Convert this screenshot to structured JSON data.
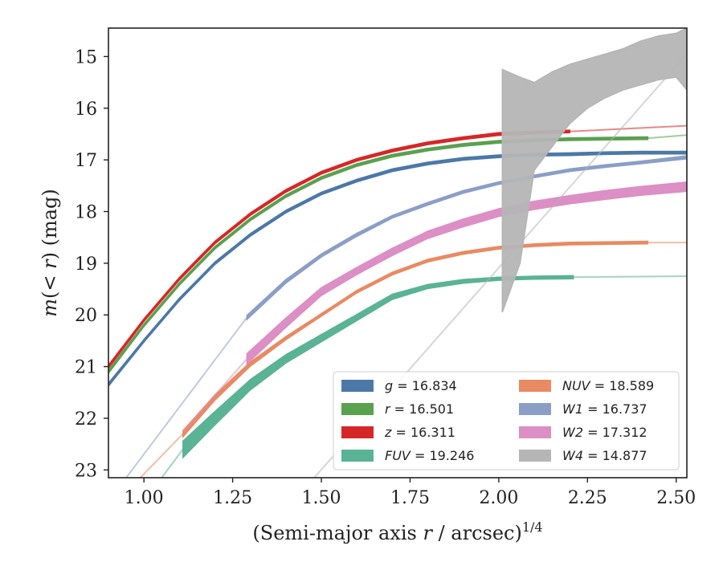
{
  "chart_data": {
    "type": "line",
    "xlabel": "(Semi-major axis r / arcsec)",
    "xlabel_sup": "1/4",
    "ylabel": "m(< r) (mag)",
    "xlim": [
      0.9,
      2.53
    ],
    "ylim": [
      23.15,
      14.45
    ],
    "y_inverted": true,
    "x_ticks": [
      "1.00",
      "1.25",
      "1.50",
      "1.75",
      "2.00",
      "2.25",
      "2.50"
    ],
    "x_tick_values": [
      1.0,
      1.25,
      1.5,
      1.75,
      2.0,
      2.25,
      2.5
    ],
    "y_ticks": [
      "15",
      "16",
      "17",
      "18",
      "19",
      "20",
      "21",
      "22",
      "23"
    ],
    "y_tick_values": [
      15,
      16,
      17,
      18,
      19,
      20,
      21,
      22,
      23
    ],
    "legend_position": "lower-right",
    "legend_columns": 2,
    "series": [
      {
        "name": "g = 16.834",
        "legend_var": "g",
        "legend_value": "16.834",
        "color": "#4c78a8",
        "thin_x": [
          0.9,
          2.53
        ],
        "band_x": [
          0.9,
          1.0,
          1.1,
          1.2,
          1.3,
          1.4,
          1.5,
          1.6,
          1.7,
          1.8,
          1.9,
          2.0,
          2.1,
          2.2,
          2.3,
          2.4,
          2.53
        ],
        "band_y": [
          21.35,
          20.5,
          19.7,
          19.0,
          18.45,
          18.0,
          17.65,
          17.4,
          17.2,
          17.07,
          16.98,
          16.93,
          16.9,
          16.89,
          16.87,
          16.86,
          16.86
        ],
        "band_width": [
          0.06,
          0.05,
          0.05,
          0.05,
          0.05,
          0.05,
          0.05,
          0.05,
          0.05,
          0.05,
          0.05,
          0.05,
          0.05,
          0.05,
          0.05,
          0.05,
          0.05
        ]
      },
      {
        "name": "r = 16.501",
        "legend_var": "r",
        "legend_value": "16.501",
        "color": "#59a14f",
        "thin_x": [
          0.9,
          2.53
        ],
        "thin_end": [
          2.53,
          16.52
        ],
        "band_x": [
          0.9,
          1.0,
          1.1,
          1.2,
          1.3,
          1.4,
          1.5,
          1.6,
          1.7,
          1.8,
          1.9,
          2.0,
          2.1,
          2.2,
          2.3,
          2.42
        ],
        "band_y": [
          21.1,
          20.2,
          19.4,
          18.7,
          18.15,
          17.7,
          17.35,
          17.1,
          16.92,
          16.8,
          16.71,
          16.65,
          16.62,
          16.6,
          16.59,
          16.58
        ],
        "band_width": [
          0.06,
          0.05,
          0.05,
          0.05,
          0.05,
          0.05,
          0.05,
          0.05,
          0.05,
          0.05,
          0.05,
          0.05,
          0.05,
          0.05,
          0.05,
          0.05
        ]
      },
      {
        "name": "z = 16.311",
        "legend_var": "z",
        "legend_value": "16.311",
        "color": "#d62728",
        "thin_end": [
          2.53,
          16.34
        ],
        "band_x": [
          0.9,
          1.0,
          1.1,
          1.2,
          1.3,
          1.4,
          1.5,
          1.6,
          1.7,
          1.8,
          1.9,
          2.0,
          2.1,
          2.2
        ],
        "band_y": [
          21.0,
          20.1,
          19.3,
          18.6,
          18.05,
          17.6,
          17.25,
          17.0,
          16.82,
          16.68,
          16.58,
          16.5,
          16.47,
          16.45
        ],
        "band_width": [
          0.06,
          0.05,
          0.05,
          0.05,
          0.05,
          0.05,
          0.05,
          0.05,
          0.05,
          0.05,
          0.05,
          0.05,
          0.05,
          0.05
        ]
      },
      {
        "name": "FUV = 19.246",
        "legend_var": "FUV",
        "legend_value": "19.246",
        "color": "#5ab394",
        "thin_start": [
          1.05,
          23.15
        ],
        "thin_end": [
          2.53,
          19.25
        ],
        "band_x": [
          1.11,
          1.2,
          1.3,
          1.4,
          1.5,
          1.6,
          1.7,
          1.8,
          1.9,
          2.0,
          2.1,
          2.21
        ],
        "band_y": [
          22.6,
          22.0,
          21.35,
          20.85,
          20.45,
          20.05,
          19.65,
          19.45,
          19.35,
          19.3,
          19.28,
          19.27
        ],
        "band_width": [
          0.32,
          0.26,
          0.2,
          0.16,
          0.14,
          0.12,
          0.1,
          0.08,
          0.07,
          0.06,
          0.06,
          0.06
        ]
      },
      {
        "name": "NUV = 18.589",
        "legend_var": "NUV",
        "legend_value": "18.589",
        "color": "#e88a62",
        "thin_start": [
          0.99,
          23.15
        ],
        "thin_end": [
          2.53,
          18.6
        ],
        "band_x": [
          1.11,
          1.2,
          1.3,
          1.4,
          1.5,
          1.6,
          1.7,
          1.8,
          1.9,
          2.0,
          2.1,
          2.2,
          2.3,
          2.42
        ],
        "band_y": [
          22.3,
          21.6,
          20.95,
          20.45,
          20.0,
          19.55,
          19.2,
          18.95,
          18.8,
          18.7,
          18.65,
          18.62,
          18.61,
          18.6
        ],
        "band_width": [
          0.12,
          0.1,
          0.08,
          0.06,
          0.05,
          0.05,
          0.05,
          0.05,
          0.05,
          0.05,
          0.05,
          0.05,
          0.05,
          0.05
        ]
      },
      {
        "name": "W1 = 16.737",
        "legend_var": "W1",
        "legend_value": "16.737",
        "color": "#8a9ec6",
        "thin_start": [
          0.95,
          23.15
        ],
        "thin_x": [
          0.95,
          2.53
        ],
        "band_x": [
          1.29,
          1.4,
          1.5,
          1.6,
          1.7,
          1.8,
          1.9,
          2.0,
          2.1,
          2.2,
          2.3,
          2.4,
          2.53
        ],
        "band_y": [
          20.05,
          19.35,
          18.85,
          18.45,
          18.1,
          17.85,
          17.62,
          17.45,
          17.32,
          17.2,
          17.12,
          17.05,
          16.95
        ],
        "band_width": [
          0.08,
          0.07,
          0.06,
          0.06,
          0.05,
          0.05,
          0.05,
          0.05,
          0.05,
          0.05,
          0.05,
          0.05,
          0.06
        ]
      },
      {
        "name": "W2 = 17.312",
        "legend_var": "W2",
        "legend_value": "17.312",
        "color": "#dc8fc4",
        "thin_start": [
          1.11,
          22.25
        ],
        "band_x": [
          1.29,
          1.4,
          1.5,
          1.6,
          1.7,
          1.8,
          1.9,
          2.0,
          2.1,
          2.2,
          2.3,
          2.4,
          2.53
        ],
        "band_y": [
          20.85,
          20.15,
          19.55,
          19.15,
          18.78,
          18.45,
          18.22,
          18.02,
          17.88,
          17.77,
          17.68,
          17.6,
          17.52
        ],
        "band_width": [
          0.2,
          0.18,
          0.15,
          0.14,
          0.14,
          0.14,
          0.15,
          0.15,
          0.16,
          0.16,
          0.17,
          0.17,
          0.18
        ]
      },
      {
        "name": "W4 = 14.877",
        "legend_var": "W4",
        "legend_value": "14.877",
        "color": "#b5b5b5",
        "thin_start": [
          1.48,
          23.15
        ],
        "thin_x": [
          1.48,
          2.53
        ],
        "thin_y": [
          23.15,
          14.95
        ],
        "band_x": [
          2.01,
          2.06,
          2.1,
          2.15,
          2.2,
          2.25,
          2.3,
          2.35,
          2.4,
          2.45,
          2.5,
          2.53
        ],
        "band_y": [
          17.6,
          16.95,
          16.4,
          16.0,
          15.75,
          15.55,
          15.4,
          15.25,
          15.1,
          15.0,
          14.95,
          14.95
        ],
        "band_lower": [
          19.95,
          19.0,
          17.2,
          16.75,
          16.3,
          16.0,
          15.8,
          15.65,
          15.55,
          15.45,
          15.4,
          15.65
        ],
        "band_upper": [
          15.25,
          15.4,
          15.5,
          15.3,
          15.15,
          15.05,
          14.95,
          14.85,
          14.7,
          14.6,
          14.55,
          14.45
        ]
      }
    ]
  }
}
